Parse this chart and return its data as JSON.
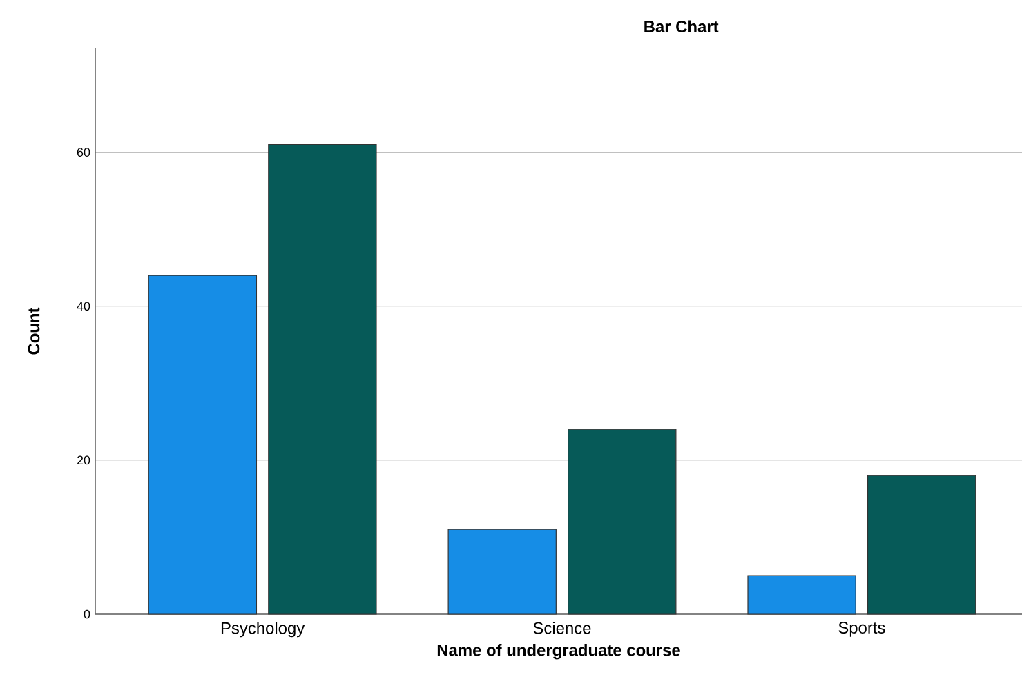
{
  "chart_data": {
    "type": "bar",
    "title": "Bar Chart",
    "xlabel": "Name of undergraduate course",
    "ylabel": "Count",
    "categories": [
      "Psychology",
      "Science",
      "Sports"
    ],
    "series": [
      {
        "color": "#168de6",
        "values": [
          44,
          11,
          5
        ]
      },
      {
        "color": "#065a58",
        "values": [
          61,
          24,
          18
        ]
      }
    ],
    "ylim": [
      0,
      73.5
    ],
    "yticks": [
      0,
      20,
      40,
      60
    ],
    "grid": "y"
  }
}
